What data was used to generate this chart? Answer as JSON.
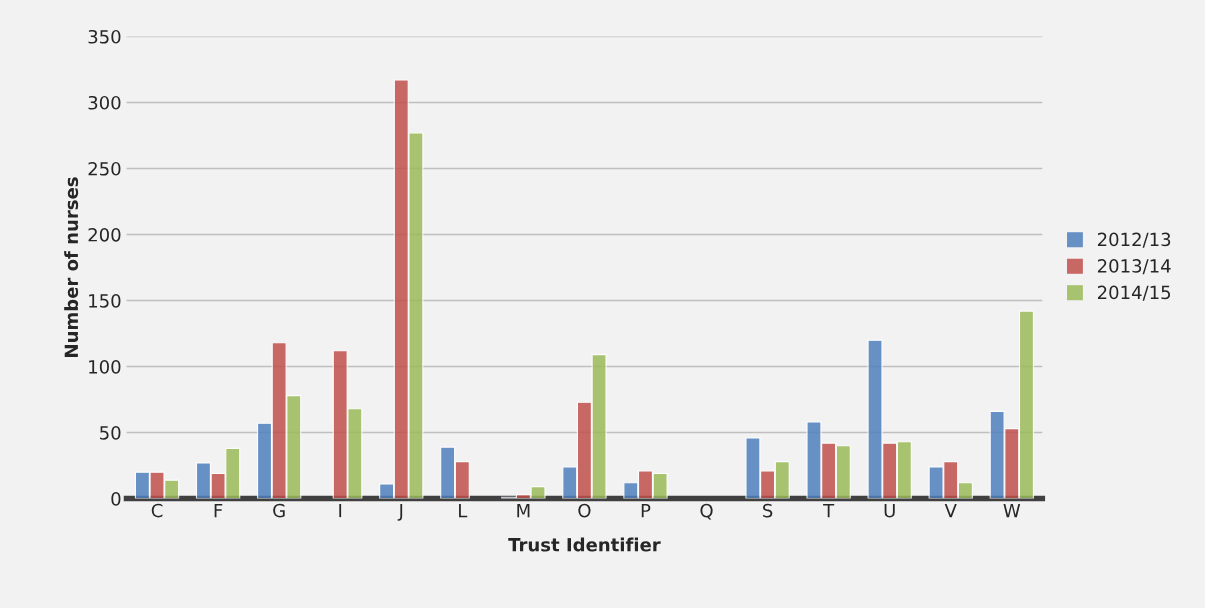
{
  "chart_data": {
    "type": "bar",
    "xlabel": "Trust Identifier",
    "ylabel": "Number of nurses",
    "categories": [
      "C",
      "F",
      "G",
      "I",
      "J",
      "L",
      "M",
      "O",
      "P",
      "Q",
      "S",
      "T",
      "U",
      "V",
      "W"
    ],
    "series": [
      {
        "name": "2012/13",
        "color": "#4f81bd",
        "values": [
          20,
          27,
          57,
          null,
          11,
          39,
          1,
          24,
          12,
          null,
          46,
          58,
          120,
          24,
          66
        ]
      },
      {
        "name": "2013/14",
        "color": "#c0504d",
        "values": [
          20,
          19,
          118,
          112,
          317,
          28,
          3,
          73,
          21,
          null,
          21,
          42,
          42,
          28,
          53
        ]
      },
      {
        "name": "2014/15",
        "color": "#9bbb59",
        "values": [
          14,
          38,
          78,
          68,
          277,
          null,
          9,
          109,
          19,
          null,
          28,
          40,
          43,
          12,
          142
        ]
      }
    ],
    "ylim": [
      0,
      350
    ],
    "yticks": [
      0,
      50,
      100,
      150,
      200,
      250,
      300,
      350
    ],
    "grid": "y",
    "legend": "right"
  }
}
